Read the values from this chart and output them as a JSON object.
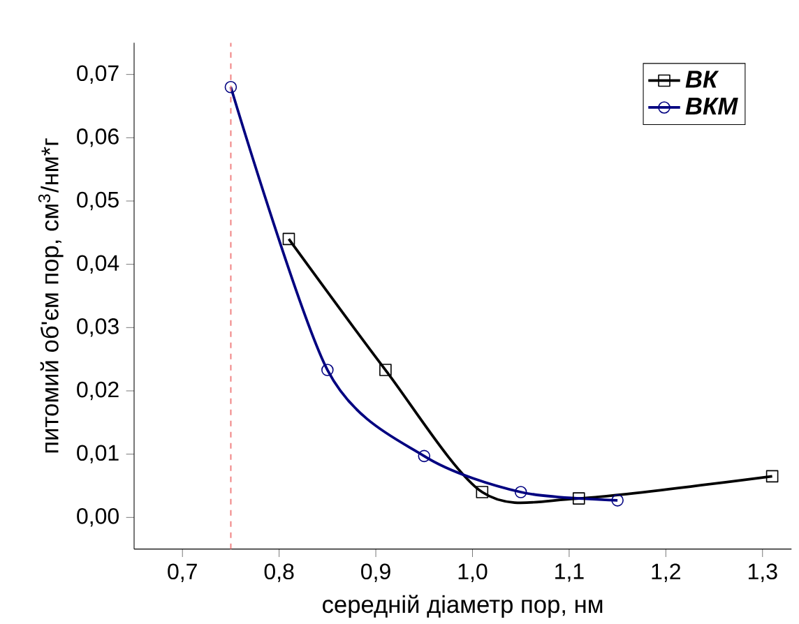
{
  "chart_data": {
    "type": "line",
    "xlabel": "середній діаметр пор, нм",
    "ylabel": "питомий об'єм пор, см$^{3}$/нм*г",
    "xlim": [
      0.65,
      1.33
    ],
    "ylim": [
      -0.005,
      0.075
    ],
    "xticks": [
      {
        "value": 0.7,
        "label": "0,7"
      },
      {
        "value": 0.8,
        "label": "0,8"
      },
      {
        "value": 0.9,
        "label": "0,9"
      },
      {
        "value": 1.0,
        "label": "1,0"
      },
      {
        "value": 1.1,
        "label": "1,1"
      },
      {
        "value": 1.2,
        "label": "1,2"
      },
      {
        "value": 1.3,
        "label": "1,3"
      }
    ],
    "yticks": [
      {
        "value": 0.0,
        "label": "0,00"
      },
      {
        "value": 0.01,
        "label": "0,01"
      },
      {
        "value": 0.02,
        "label": "0,02"
      },
      {
        "value": 0.03,
        "label": "0,03"
      },
      {
        "value": 0.04,
        "label": "0,04"
      },
      {
        "value": 0.05,
        "label": "0,05"
      },
      {
        "value": 0.06,
        "label": "0,06"
      },
      {
        "value": 0.07,
        "label": "0,07"
      }
    ],
    "series": [
      {
        "name": "ВК",
        "color": "#000000",
        "marker": "square",
        "x": [
          0.81,
          0.91,
          1.01,
          1.11,
          1.31
        ],
        "values": [
          0.044,
          0.0233,
          0.004,
          0.003,
          0.0065
        ]
      },
      {
        "name": "ВКМ",
        "color": "#000080",
        "marker": "circle",
        "x": [
          0.75,
          0.85,
          0.95,
          1.05,
          1.15
        ],
        "values": [
          0.068,
          0.0233,
          0.0097,
          0.004,
          0.0027
        ]
      }
    ],
    "ref_lines": [
      {
        "axis": "x",
        "value": 0.75,
        "color": "#f08080",
        "line_style": "dashed"
      }
    ],
    "legend": "top right",
    "grid": false,
    "line_style": "solid"
  }
}
